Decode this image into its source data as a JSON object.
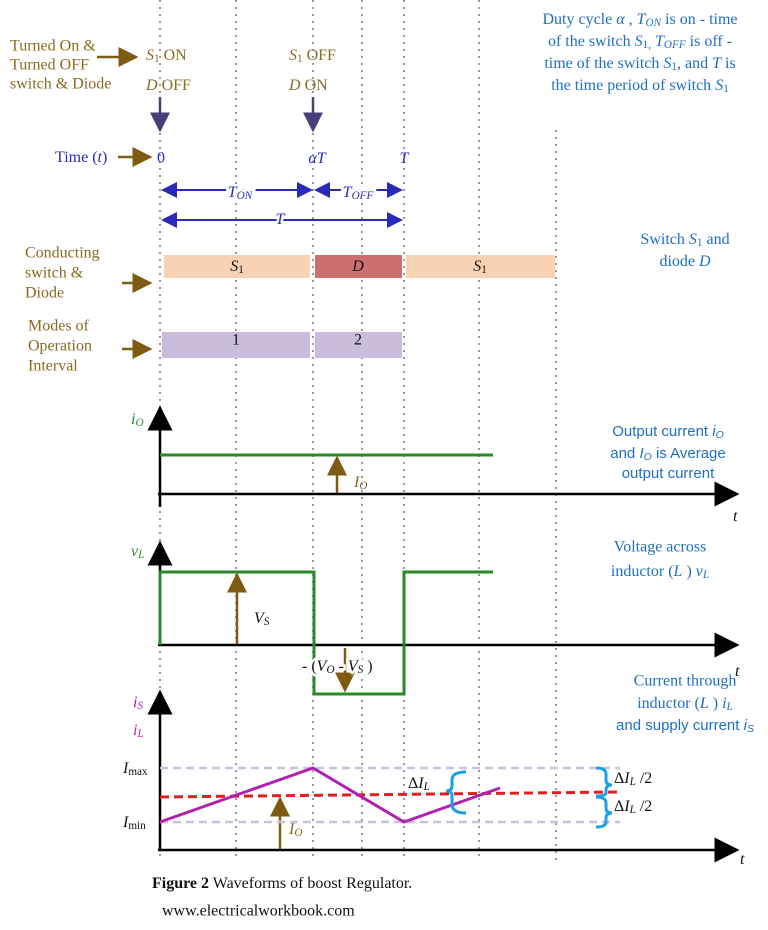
{
  "labels": {
    "turned1": "Turned On &",
    "turned2": "Turned OFF",
    "turned3": "switch & Diode",
    "s1on": [
      {
        "i": "S"
      },
      {
        "sub": "1"
      },
      "  ON"
    ],
    "doff": [
      {
        "i": "D"
      },
      "  OFF"
    ],
    "s1off": [
      {
        "i": "S"
      },
      {
        "sub": "1"
      },
      "  OFF"
    ],
    "don": [
      {
        "i": "D"
      },
      "  ON"
    ],
    "duty1": [
      "Duty cycle ",
      {
        "i": "α"
      },
      " , ",
      {
        "i": "T"
      },
      {
        "isub": "ON"
      },
      " is on - time"
    ],
    "duty2": [
      "of the switch ",
      {
        "i": "S"
      },
      {
        "sub": "1,"
      },
      " ",
      {
        "i": "T"
      },
      {
        "isub": "OFF"
      },
      " is off -"
    ],
    "duty3": [
      "time of the switch ",
      {
        "i": "S"
      },
      {
        "sub": "1"
      },
      ", and ",
      {
        "i": "T"
      },
      " is"
    ],
    "duty4": [
      "the time period of switch ",
      {
        "i": "S"
      },
      {
        "sub": "1"
      }
    ],
    "time": [
      "Time (",
      {
        "i": "t"
      },
      ")"
    ],
    "t0": "0",
    "alphaT": [
      {
        "i": "αT"
      }
    ],
    "tEnd": [
      {
        "i": "T"
      }
    ],
    "ton": [
      {
        "i": "T"
      },
      {
        "isub": "ON"
      }
    ],
    "toff": [
      {
        "i": "T"
      },
      {
        "isub": "OFF"
      }
    ],
    "tper": [
      {
        "i": "T"
      }
    ],
    "cond1": "Conducting",
    "cond2": "switch &",
    "cond3": "Diode",
    "bar1": [
      {
        "i": "S"
      },
      {
        "sub": "1"
      }
    ],
    "bar2": [
      {
        "i": "D"
      }
    ],
    "bar3": [
      {
        "i": "S"
      },
      {
        "sub": "1"
      }
    ],
    "switch1": [
      "Switch ",
      {
        "i": "S"
      },
      {
        "sub": "1"
      },
      " and"
    ],
    "switch2": [
      "diode ",
      {
        "i": "D"
      }
    ],
    "modes1": "Modes of",
    "modes2": "Operation",
    "modes3": "Interval",
    "mode1": "1",
    "mode2": "2",
    "ioAxis": [
      {
        "i": "i"
      },
      {
        "isub": "O"
      }
    ],
    "ioAvg": [
      {
        "i": "I"
      },
      {
        "isub": "O"
      }
    ],
    "out1": [
      "Output current ",
      {
        "i": "i"
      },
      {
        "isub": "O"
      }
    ],
    "out2": [
      "and ",
      {
        "i": "I"
      },
      {
        "isub": "O"
      },
      " is Average"
    ],
    "out3": "output current",
    "t1": [
      {
        "i": "t"
      }
    ],
    "t2": [
      {
        "i": "t"
      }
    ],
    "t3": [
      {
        "i": "t"
      }
    ],
    "vlAxis": [
      {
        "i": "v"
      },
      {
        "isub": "L"
      }
    ],
    "vs": [
      {
        "i": "V"
      },
      {
        "isub": "S"
      }
    ],
    "neg": [
      "- (",
      {
        "i": "V"
      },
      {
        "isub": "O"
      },
      " - ",
      {
        "i": "V"
      },
      {
        "isub": "S"
      },
      " )"
    ],
    "volt1": "Voltage across",
    "volt2": [
      "inductor (",
      {
        "i": "L"
      },
      " ) ",
      {
        "i": "v"
      },
      {
        "isub": "L"
      }
    ],
    "isAxis": [
      {
        "i": "i"
      },
      {
        "isub": "S"
      }
    ],
    "ilAxis": [
      {
        "i": "i"
      },
      {
        "isub": "L"
      }
    ],
    "imax": [
      {
        "i": "I"
      },
      {
        "sub": "max"
      }
    ],
    "imin": [
      {
        "i": "I"
      },
      {
        "sub": "min"
      }
    ],
    "io3": [
      {
        "i": "I"
      },
      {
        "isub": "O"
      }
    ],
    "dil": [
      "Δ",
      {
        "i": "I"
      },
      {
        "isub": "L"
      }
    ],
    "half1": [
      "Δ",
      {
        "i": "I"
      },
      {
        "isub": "L"
      },
      " /2"
    ],
    "half2": [
      "Δ",
      {
        "i": "I"
      },
      {
        "isub": "L"
      },
      " /2"
    ],
    "cur1": "Current through",
    "cur2": [
      "inductor (",
      {
        "i": "L"
      },
      " ) ",
      {
        "i": "i"
      },
      {
        "isub": "L"
      }
    ],
    "cur3": [
      "and supply current ",
      {
        "i": "i"
      },
      {
        "isub": "S"
      }
    ],
    "caption": [
      {
        "b": "Figure 2"
      },
      " Waveforms of boost Regulator."
    ],
    "url": "www.electricalworkbook.com"
  }
}
